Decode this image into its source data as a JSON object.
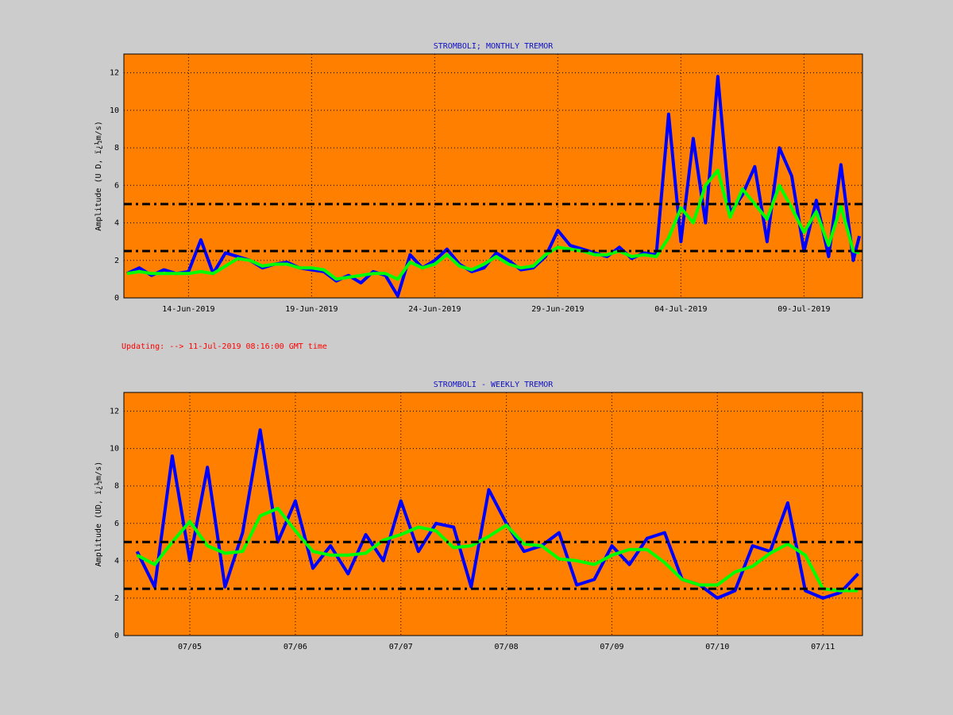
{
  "update_note": "Updating:  -->  11-Jul-2019 08:16:00 GMT time",
  "chart_data": [
    {
      "type": "line",
      "title": "STROMBOLI; MONTHLY TREMOR",
      "y_label": "Amplitude   (U D,  ï¿½m/s)",
      "xlim": [
        "2019-06-11T09:00",
        "2019-07-11T09:00"
      ],
      "xticks": [
        {
          "value": "2019-06-14T00:00",
          "label": "14-Jun-2019"
        },
        {
          "value": "2019-06-19T00:00",
          "label": "19-Jun-2019"
        },
        {
          "value": "2019-06-24T00:00",
          "label": "24-Jun-2019"
        },
        {
          "value": "2019-06-29T00:00",
          "label": "29-Jun-2019"
        },
        {
          "value": "2019-07-04T00:00",
          "label": "04-Jul-2019"
        },
        {
          "value": "2019-07-09T00:00",
          "label": "09-Jul-2019"
        }
      ],
      "ylim": [
        0,
        13
      ],
      "yticks": [
        0,
        2,
        4,
        6,
        8,
        10,
        12
      ],
      "grid": true,
      "reference_lines": [
        2.5,
        5
      ],
      "x": [
        "2019-06-11T12:00",
        "2019-06-12T00:00",
        "2019-06-12T12:00",
        "2019-06-13T00:00",
        "2019-06-13T12:00",
        "2019-06-14T00:00",
        "2019-06-14T12:00",
        "2019-06-15T00:00",
        "2019-06-15T12:00",
        "2019-06-16T00:00",
        "2019-06-16T12:00",
        "2019-06-17T00:00",
        "2019-06-17T12:00",
        "2019-06-18T00:00",
        "2019-06-18T12:00",
        "2019-06-19T00:00",
        "2019-06-19T12:00",
        "2019-06-20T00:00",
        "2019-06-20T12:00",
        "2019-06-21T00:00",
        "2019-06-21T12:00",
        "2019-06-22T00:00",
        "2019-06-22T12:00",
        "2019-06-23T00:00",
        "2019-06-23T12:00",
        "2019-06-24T00:00",
        "2019-06-24T12:00",
        "2019-06-25T00:00",
        "2019-06-25T12:00",
        "2019-06-26T00:00",
        "2019-06-26T12:00",
        "2019-06-27T00:00",
        "2019-06-27T12:00",
        "2019-06-28T00:00",
        "2019-06-28T12:00",
        "2019-06-29T00:00",
        "2019-06-29T12:00",
        "2019-06-30T00:00",
        "2019-06-30T12:00",
        "2019-07-01T00:00",
        "2019-07-01T12:00",
        "2019-07-02T00:00",
        "2019-07-02T12:00",
        "2019-07-03T00:00",
        "2019-07-03T12:00",
        "2019-07-04T00:00",
        "2019-07-04T12:00",
        "2019-07-05T00:00",
        "2019-07-05T12:00",
        "2019-07-06T00:00",
        "2019-07-06T12:00",
        "2019-07-07T00:00",
        "2019-07-07T12:00",
        "2019-07-08T00:00",
        "2019-07-08T12:00",
        "2019-07-09T00:00",
        "2019-07-09T12:00",
        "2019-07-10T00:00",
        "2019-07-10T12:00",
        "2019-07-11T00:00",
        "2019-07-11T06:00"
      ],
      "series": [
        {
          "color": "#0000ff",
          "values": [
            1.3,
            1.6,
            1.2,
            1.5,
            1.3,
            1.4,
            3.1,
            1.3,
            2.4,
            2.2,
            2.0,
            1.6,
            1.8,
            1.9,
            1.6,
            1.5,
            1.4,
            0.9,
            1.2,
            0.8,
            1.4,
            1.2,
            0.1,
            2.3,
            1.6,
            2.0,
            2.6,
            1.8,
            1.4,
            1.6,
            2.4,
            2.0,
            1.5,
            1.6,
            2.2,
            3.6,
            2.8,
            2.6,
            2.4,
            2.2,
            2.7,
            2.1,
            2.4,
            2.3,
            9.8,
            3.0,
            8.5,
            4.0,
            11.8,
            4.5,
            5.5,
            7.0,
            3.0,
            8.0,
            6.5,
            2.5,
            5.2,
            2.2,
            7.1,
            2.0,
            3.3
          ]
        },
        {
          "color": "#00ff00",
          "values": [
            1.3,
            1.4,
            1.3,
            1.3,
            1.3,
            1.3,
            1.4,
            1.3,
            1.7,
            2.1,
            2.0,
            1.7,
            1.8,
            1.8,
            1.6,
            1.6,
            1.5,
            1.0,
            1.1,
            1.2,
            1.3,
            1.3,
            1.0,
            1.9,
            1.6,
            1.8,
            2.3,
            1.7,
            1.5,
            1.8,
            2.2,
            1.8,
            1.6,
            1.7,
            2.3,
            2.7,
            2.6,
            2.5,
            2.3,
            2.3,
            2.5,
            2.2,
            2.3,
            2.2,
            3.2,
            4.8,
            4.0,
            6.0,
            6.8,
            4.3,
            5.8,
            5.0,
            4.2,
            6.0,
            4.8,
            3.5,
            4.6,
            2.8,
            4.9,
            2.5,
            2.4
          ]
        }
      ]
    },
    {
      "type": "line",
      "title": "STROMBOLI - WEEKLY TREMOR",
      "y_label": "Amplitude (UD, ï¿½m/s)",
      "xlim": [
        "2019-07-04T09:00",
        "2019-07-11T09:00"
      ],
      "xticks": [
        {
          "value": "2019-07-05T00:00",
          "label": "07/05"
        },
        {
          "value": "2019-07-06T00:00",
          "label": "07/06"
        },
        {
          "value": "2019-07-07T00:00",
          "label": "07/07"
        },
        {
          "value": "2019-07-08T00:00",
          "label": "07/08"
        },
        {
          "value": "2019-07-09T00:00",
          "label": "07/09"
        },
        {
          "value": "2019-07-10T00:00",
          "label": "07/10"
        },
        {
          "value": "2019-07-11T00:00",
          "label": "07/11"
        }
      ],
      "ylim": [
        0,
        13
      ],
      "yticks": [
        0,
        2,
        4,
        6,
        8,
        10,
        12
      ],
      "grid": true,
      "reference_lines": [
        2.5,
        5
      ],
      "x": [
        "2019-07-04T12:00",
        "2019-07-04T16:00",
        "2019-07-04T20:00",
        "2019-07-05T00:00",
        "2019-07-05T04:00",
        "2019-07-05T08:00",
        "2019-07-05T12:00",
        "2019-07-05T16:00",
        "2019-07-05T20:00",
        "2019-07-06T00:00",
        "2019-07-06T04:00",
        "2019-07-06T08:00",
        "2019-07-06T12:00",
        "2019-07-06T16:00",
        "2019-07-06T20:00",
        "2019-07-07T00:00",
        "2019-07-07T04:00",
        "2019-07-07T08:00",
        "2019-07-07T12:00",
        "2019-07-07T16:00",
        "2019-07-07T20:00",
        "2019-07-08T00:00",
        "2019-07-08T04:00",
        "2019-07-08T08:00",
        "2019-07-08T12:00",
        "2019-07-08T16:00",
        "2019-07-08T20:00",
        "2019-07-09T00:00",
        "2019-07-09T04:00",
        "2019-07-09T08:00",
        "2019-07-09T12:00",
        "2019-07-09T16:00",
        "2019-07-09T20:00",
        "2019-07-10T00:00",
        "2019-07-10T04:00",
        "2019-07-10T08:00",
        "2019-07-10T12:00",
        "2019-07-10T16:00",
        "2019-07-10T20:00",
        "2019-07-11T00:00",
        "2019-07-11T04:00",
        "2019-07-11T08:00"
      ],
      "series": [
        {
          "color": "#0000ff",
          "values": [
            4.5,
            2.6,
            9.6,
            4.0,
            9.0,
            2.6,
            5.5,
            11.0,
            5.0,
            7.2,
            3.6,
            4.8,
            3.3,
            5.4,
            4.0,
            7.2,
            4.5,
            6.0,
            5.8,
            2.6,
            7.8,
            6.0,
            4.5,
            4.8,
            5.5,
            2.7,
            3.0,
            4.8,
            3.8,
            5.2,
            5.5,
            3.0,
            2.7,
            2.0,
            2.4,
            4.8,
            4.5,
            7.1,
            2.4,
            2.0,
            2.3,
            3.3
          ]
        },
        {
          "color": "#00ff00",
          "values": [
            4.3,
            3.8,
            5.0,
            6.1,
            4.8,
            4.4,
            4.5,
            6.4,
            6.8,
            5.6,
            4.5,
            4.3,
            4.3,
            4.4,
            5.1,
            5.4,
            5.8,
            5.6,
            4.7,
            4.8,
            5.3,
            5.9,
            4.9,
            4.8,
            4.1,
            4.0,
            3.8,
            4.3,
            4.6,
            4.6,
            3.9,
            3.0,
            2.7,
            2.7,
            3.4,
            3.7,
            4.4,
            4.9,
            4.3,
            2.5,
            2.4,
            2.4
          ]
        }
      ]
    }
  ]
}
